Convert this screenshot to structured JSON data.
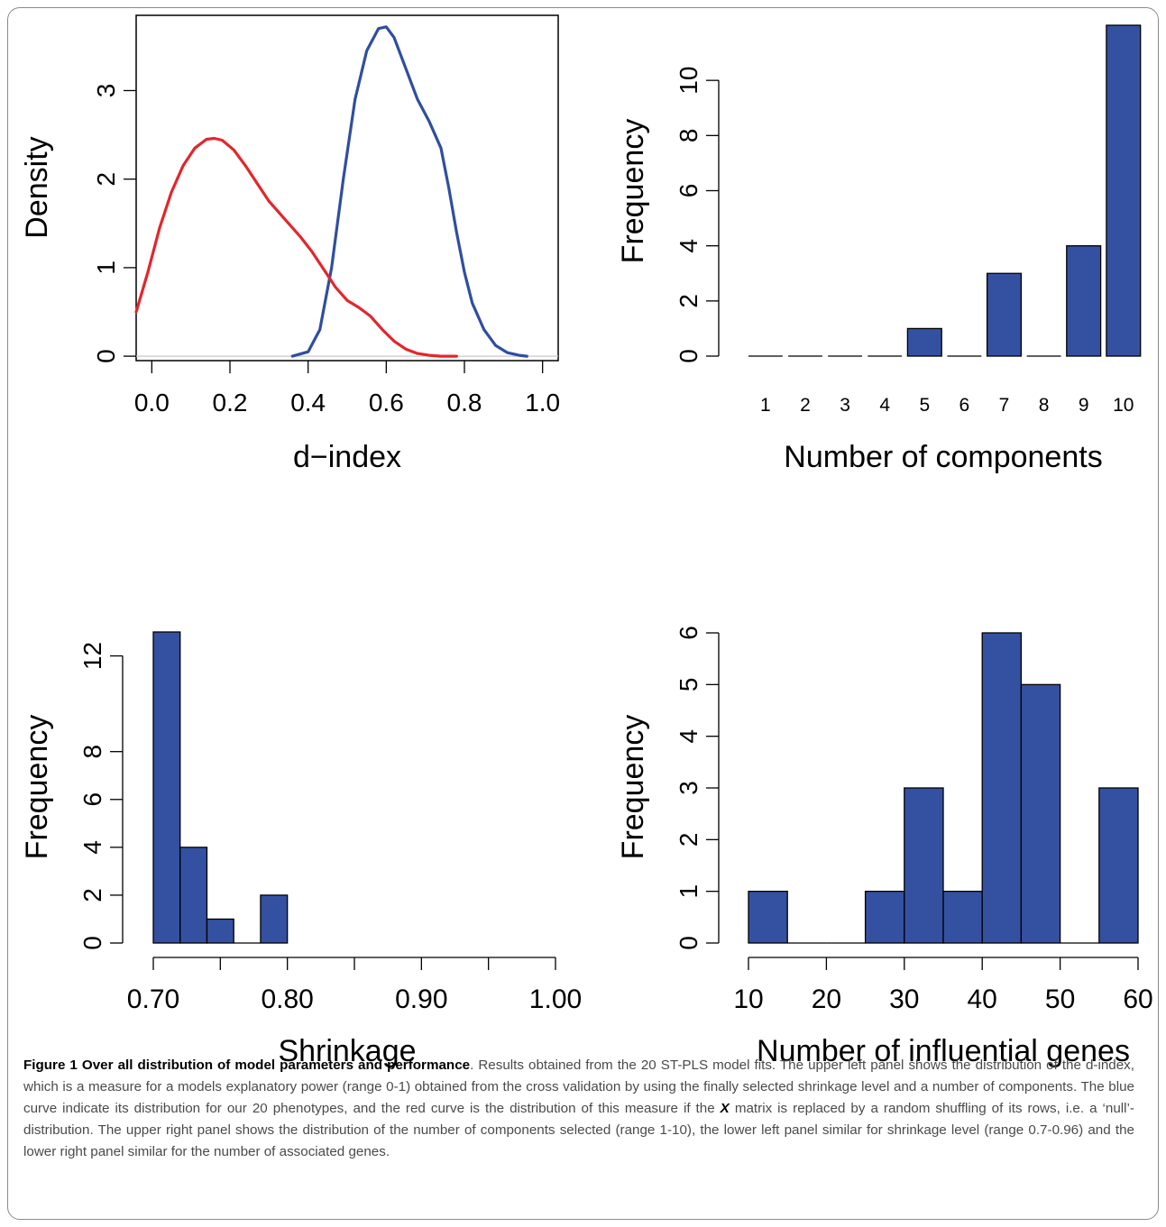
{
  "caption": {
    "label": "Figure 1",
    "title": "Over all distribution of model parameters and performance",
    "text_pre": ". Results obtained from the 20 ST-PLS model fits. The upper left panel shows the distribution of the d-index, which is a measure for a models explanatory power (range 0-1) obtained from the cross validation by using the finally selected shrinkage level and a number of components. The blue curve indicate its distribution for our 20 phenotypes, and the red curve is the distribution of this measure if the ",
    "matrix_symbol": "X",
    "text_post": " matrix is replaced by a random shuffling of its rows, i.e. a ‘null’-distribution. The upper right panel shows the distribution of the number of components selected (range 1-10), the lower left panel similar for shrinkage level (range 0.7-0.96) and the lower right panel similar for the number of associated genes."
  },
  "colors": {
    "blue_curve": "#2f4ea0",
    "red_curve": "#e3262b",
    "bar_fill": "#3451a1",
    "baseline": "#c8c8c8"
  },
  "chart_data": [
    {
      "id": "density",
      "type": "line",
      "xlabel": "d−index",
      "ylabel": "Density",
      "xlim": [
        -0.04,
        1.04
      ],
      "ylim": [
        -0.05,
        3.85
      ],
      "xticks": [
        0.0,
        0.2,
        0.4,
        0.6,
        0.8,
        1.0
      ],
      "xtick_labels": [
        "0.0",
        "0.2",
        "0.4",
        "0.6",
        "0.8",
        "1.0"
      ],
      "yticks": [
        0,
        1,
        2,
        3
      ],
      "ytick_labels": [
        "0",
        "1",
        "2",
        "3"
      ],
      "series": [
        {
          "color": "#2f4ea0",
          "x": [
            0.36,
            0.4,
            0.43,
            0.46,
            0.49,
            0.52,
            0.55,
            0.58,
            0.6,
            0.62,
            0.65,
            0.68,
            0.71,
            0.74,
            0.76,
            0.78,
            0.8,
            0.82,
            0.85,
            0.88,
            0.91,
            0.94,
            0.96
          ],
          "y": [
            0.0,
            0.05,
            0.3,
            1.0,
            2.0,
            2.9,
            3.45,
            3.7,
            3.72,
            3.6,
            3.25,
            2.9,
            2.65,
            2.35,
            1.9,
            1.4,
            0.95,
            0.6,
            0.3,
            0.12,
            0.04,
            0.01,
            0.0
          ]
        },
        {
          "color": "#e3262b",
          "x": [
            -0.04,
            -0.01,
            0.02,
            0.05,
            0.08,
            0.11,
            0.14,
            0.16,
            0.18,
            0.21,
            0.24,
            0.27,
            0.3,
            0.34,
            0.38,
            0.41,
            0.44,
            0.47,
            0.5,
            0.53,
            0.56,
            0.59,
            0.62,
            0.65,
            0.68,
            0.71,
            0.74,
            0.78
          ],
          "y": [
            0.5,
            0.95,
            1.45,
            1.85,
            2.15,
            2.35,
            2.45,
            2.46,
            2.44,
            2.33,
            2.15,
            1.95,
            1.75,
            1.55,
            1.35,
            1.18,
            0.98,
            0.78,
            0.63,
            0.55,
            0.45,
            0.3,
            0.17,
            0.08,
            0.03,
            0.01,
            0.0,
            0.0
          ]
        }
      ],
      "baseline": 0
    },
    {
      "id": "components",
      "type": "bar",
      "xlabel": "Number of components",
      "ylabel": "Frequency",
      "categories": [
        "1",
        "2",
        "3",
        "4",
        "5",
        "6",
        "7",
        "8",
        "9",
        "10"
      ],
      "values": [
        0,
        0,
        0,
        0,
        1,
        0,
        3,
        0,
        4,
        12
      ],
      "ylim": [
        0,
        12
      ],
      "yticks": [
        0,
        2,
        4,
        6,
        8,
        10
      ],
      "ytick_labels": [
        "0",
        "2",
        "4",
        "6",
        "8",
        "10"
      ]
    },
    {
      "id": "shrinkage",
      "type": "bar",
      "xlabel": "Shrinkage",
      "ylabel": "Frequency",
      "bin_edges": [
        0.7,
        0.72,
        0.74,
        0.76,
        0.78,
        0.8
      ],
      "values": [
        13,
        4,
        1,
        0,
        2
      ],
      "xlim": [
        0.7,
        1.0
      ],
      "ylim": [
        0,
        13
      ],
      "xticks": [
        0.7,
        0.75,
        0.8,
        0.85,
        0.9,
        0.95,
        1.0
      ],
      "xtick_labels": [
        "0.70",
        "",
        "0.80",
        "",
        "0.90",
        "",
        "1.00"
      ],
      "yticks": [
        0,
        2,
        4,
        6,
        8,
        12
      ],
      "ytick_labels": [
        "0",
        "2",
        "4",
        "6",
        "8",
        "12"
      ]
    },
    {
      "id": "genes",
      "type": "bar",
      "xlabel": "Number of influential genes",
      "ylabel": "Frequency",
      "bin_edges": [
        10,
        15,
        20,
        25,
        30,
        35,
        40,
        45,
        50,
        55,
        60
      ],
      "values": [
        1,
        0,
        0,
        1,
        3,
        1,
        6,
        5,
        0,
        3
      ],
      "xlim": [
        10,
        60
      ],
      "ylim": [
        0,
        6
      ],
      "xticks": [
        10,
        20,
        30,
        40,
        50,
        60
      ],
      "xtick_labels": [
        "10",
        "20",
        "30",
        "40",
        "50",
        "60"
      ],
      "yticks": [
        0,
        1,
        2,
        3,
        4,
        5,
        6
      ],
      "ytick_labels": [
        "0",
        "1",
        "2",
        "3",
        "4",
        "5",
        "6"
      ]
    }
  ]
}
